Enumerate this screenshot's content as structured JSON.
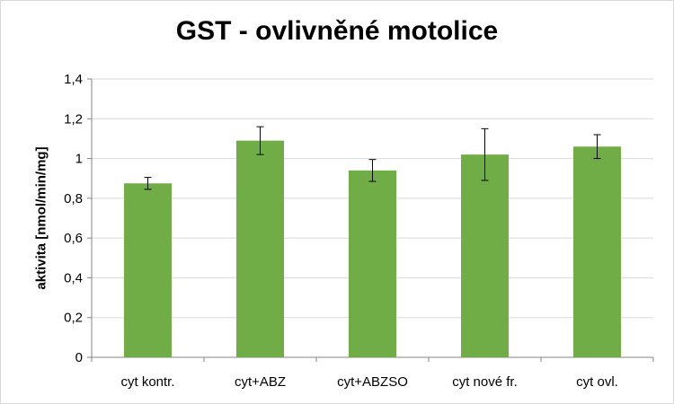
{
  "chart_data": {
    "type": "bar",
    "title": "GST - ovlivněné motolice",
    "xlabel": "",
    "ylabel": "aktivita [nmol/min/mg]",
    "categories": [
      "cyt kontr.",
      "cyt+ABZ",
      "cyt+ABZSO",
      "cyt nové fr.",
      "cyt ovl."
    ],
    "values": [
      0.875,
      1.09,
      0.94,
      1.02,
      1.06
    ],
    "errors": [
      0.03,
      0.07,
      0.055,
      0.13,
      0.06
    ],
    "ylim": [
      0,
      1.4
    ],
    "yticks": [
      "0",
      "0,2",
      "0,4",
      "0,6",
      "0,8",
      "1",
      "1,2",
      "1,4"
    ],
    "ytick_values": [
      0,
      0.2,
      0.4,
      0.6,
      0.8,
      1.0,
      1.2,
      1.4
    ],
    "grid": true,
    "legend": "none",
    "bar_color": "#70ad47",
    "grid_color": "#d9d9d9"
  }
}
